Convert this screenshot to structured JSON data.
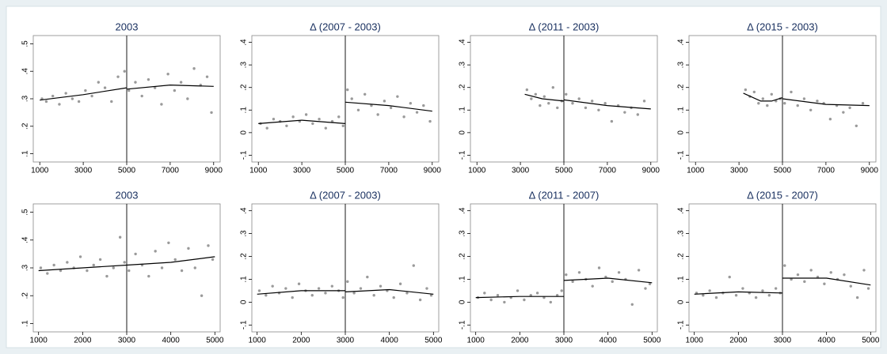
{
  "chart_data": [
    {
      "type": "scatter",
      "title": "2003",
      "color": "#9a9a9a",
      "fit_color": "#000000",
      "cutoff": 5000,
      "xlim": [
        700,
        9300
      ],
      "xticks": [
        1000,
        3000,
        5000,
        7000,
        9000
      ],
      "ylim": [
        0.07,
        0.53
      ],
      "yticks": [
        {
          "value": 0.1,
          "label": ".1"
        },
        {
          "value": 0.2,
          "label": ".2"
        },
        {
          "value": 0.3,
          "label": ".3"
        },
        {
          "value": 0.4,
          "label": ".4"
        },
        {
          "value": 0.5,
          "label": ".5"
        }
      ],
      "x": [
        1100,
        1300,
        1600,
        1900,
        2200,
        2500,
        2800,
        3100,
        3400,
        3700,
        4000,
        4300,
        4600,
        4900,
        5100,
        5400,
        5700,
        6000,
        6300,
        6600,
        6900,
        7200,
        7500,
        7800,
        8100,
        8400,
        8700,
        8900
      ],
      "y": [
        0.3,
        0.29,
        0.31,
        0.28,
        0.32,
        0.3,
        0.29,
        0.33,
        0.31,
        0.36,
        0.34,
        0.29,
        0.38,
        0.4,
        0.33,
        0.36,
        0.31,
        0.37,
        0.34,
        0.28,
        0.39,
        0.33,
        0.36,
        0.3,
        0.41,
        0.35,
        0.38,
        0.25
      ],
      "fit_x": [
        1000,
        3000,
        5000,
        null,
        5000,
        7000,
        9000
      ],
      "fit_y": [
        0.295,
        0.315,
        0.34,
        null,
        0.335,
        0.35,
        0.345
      ]
    },
    {
      "type": "scatter",
      "title": "Δ (2007 - 2003)",
      "color": "#9a9a9a",
      "fit_color": "#000000",
      "cutoff": 5000,
      "xlim": [
        700,
        9300
      ],
      "xticks": [
        1000,
        3000,
        5000,
        7000,
        9000
      ],
      "ylim": [
        -0.13,
        0.43
      ],
      "yticks": [
        {
          "value": -0.1,
          "label": "-.1"
        },
        0,
        {
          "value": 0.1,
          "label": ".1"
        },
        {
          "value": 0.2,
          "label": ".2"
        },
        {
          "value": 0.3,
          "label": ".3"
        },
        {
          "value": 0.4,
          "label": ".4"
        }
      ],
      "x": [
        1100,
        1400,
        1700,
        2000,
        2300,
        2600,
        2900,
        3200,
        3500,
        3800,
        4100,
        4400,
        4700,
        4900,
        5100,
        5300,
        5600,
        5900,
        6200,
        6500,
        6800,
        7100,
        7400,
        7700,
        8000,
        8300,
        8600,
        8900
      ],
      "y": [
        0.04,
        0.02,
        0.06,
        0.05,
        0.03,
        0.07,
        0.05,
        0.08,
        0.04,
        0.06,
        0.02,
        0.05,
        0.07,
        0.03,
        0.19,
        0.15,
        0.1,
        0.17,
        0.12,
        0.08,
        0.14,
        0.11,
        0.16,
        0.07,
        0.13,
        0.09,
        0.12,
        0.05
      ],
      "fit_x": [
        1000,
        3000,
        5000,
        null,
        5000,
        7000,
        9000
      ],
      "fit_y": [
        0.04,
        0.055,
        0.04,
        null,
        0.135,
        0.12,
        0.095
      ]
    },
    {
      "type": "scatter",
      "title": "Δ (2011 - 2003)",
      "color": "#9a9a9a",
      "fit_color": "#000000",
      "cutoff": 5000,
      "xlim": [
        700,
        9300
      ],
      "xticks": [
        1000,
        3000,
        5000,
        7000,
        9000
      ],
      "ylim": [
        -0.13,
        0.43
      ],
      "yticks": [
        {
          "value": -0.1,
          "label": "-.1"
        },
        0,
        {
          "value": 0.1,
          "label": ".1"
        },
        {
          "value": 0.2,
          "label": ".2"
        },
        {
          "value": 0.3,
          "label": ".3"
        },
        {
          "value": 0.4,
          "label": ".4"
        }
      ],
      "x": [
        3300,
        3500,
        3700,
        3900,
        4100,
        4300,
        4500,
        4700,
        4900,
        5100,
        5400,
        5700,
        6000,
        6300,
        6600,
        6900,
        7200,
        7500,
        7800,
        8100,
        8400,
        8700
      ],
      "y": [
        0.19,
        0.15,
        0.17,
        0.12,
        0.16,
        0.13,
        0.2,
        0.11,
        0.14,
        0.17,
        0.13,
        0.15,
        0.11,
        0.14,
        0.1,
        0.13,
        0.05,
        0.12,
        0.09,
        0.11,
        0.08,
        0.14
      ],
      "fit_x": [
        3200,
        4000,
        5000,
        null,
        5000,
        7000,
        9000
      ],
      "fit_y": [
        0.17,
        0.15,
        0.14,
        null,
        0.145,
        0.12,
        0.105
      ]
    },
    {
      "type": "scatter",
      "title": "Δ (2015 - 2003)",
      "color": "#9a9a9a",
      "fit_color": "#000000",
      "cutoff": 5000,
      "xlim": [
        700,
        9300
      ],
      "xticks": [
        1000,
        3000,
        5000,
        7000,
        9000
      ],
      "ylim": [
        -0.13,
        0.43
      ],
      "yticks": [
        {
          "value": -0.1,
          "label": "-.1"
        },
        0,
        {
          "value": 0.1,
          "label": ".1"
        },
        {
          "value": 0.2,
          "label": ".2"
        },
        {
          "value": 0.3,
          "label": ".3"
        },
        {
          "value": 0.4,
          "label": ".4"
        }
      ],
      "x": [
        3300,
        3500,
        3700,
        3900,
        4100,
        4300,
        4500,
        4700,
        4900,
        5100,
        5400,
        5700,
        6000,
        6300,
        6600,
        6900,
        7200,
        7500,
        7800,
        8100,
        8400,
        8700
      ],
      "y": [
        0.19,
        0.16,
        0.18,
        0.13,
        0.15,
        0.12,
        0.17,
        0.14,
        0.15,
        0.13,
        0.18,
        0.12,
        0.15,
        0.1,
        0.14,
        0.13,
        0.06,
        0.12,
        0.09,
        0.11,
        0.03,
        0.13
      ],
      "fit_x": [
        3200,
        4000,
        4500,
        5000,
        null,
        5000,
        7000,
        9000
      ],
      "fit_y": [
        0.175,
        0.14,
        0.14,
        0.155,
        null,
        0.15,
        0.125,
        0.12
      ]
    },
    {
      "type": "scatter",
      "title": "2003",
      "color": "#9a9a9a",
      "fit_color": "#000000",
      "cutoff": 3000,
      "xlim": [
        880,
        5120
      ],
      "xticks": [
        1000,
        2000,
        3000,
        4000,
        5000
      ],
      "ylim": [
        0.07,
        0.53
      ],
      "yticks": [
        {
          "value": 0.1,
          "label": ".1"
        },
        {
          "value": 0.2,
          "label": ".2"
        },
        {
          "value": 0.3,
          "label": ".3"
        },
        {
          "value": 0.4,
          "label": ".4"
        },
        {
          "value": 0.5,
          "label": ".5"
        }
      ],
      "x": [
        1050,
        1200,
        1350,
        1500,
        1650,
        1800,
        1950,
        2100,
        2250,
        2400,
        2550,
        2700,
        2850,
        2950,
        3050,
        3200,
        3350,
        3500,
        3650,
        3800,
        3950,
        4100,
        4250,
        4400,
        4550,
        4700,
        4850,
        4950
      ],
      "y": [
        0.3,
        0.28,
        0.31,
        0.29,
        0.32,
        0.3,
        0.34,
        0.29,
        0.31,
        0.33,
        0.27,
        0.3,
        0.41,
        0.32,
        0.29,
        0.35,
        0.31,
        0.27,
        0.36,
        0.3,
        0.39,
        0.33,
        0.29,
        0.37,
        0.3,
        0.2,
        0.38,
        0.33
      ],
      "fit_x": [
        1000,
        2000,
        3000,
        null,
        3000,
        4000,
        5000
      ],
      "fit_y": [
        0.29,
        0.3,
        0.31,
        null,
        0.31,
        0.32,
        0.34
      ]
    },
    {
      "type": "scatter",
      "title": "Δ (2007 - 2003)",
      "color": "#9a9a9a",
      "fit_color": "#000000",
      "cutoff": 3000,
      "xlim": [
        880,
        5120
      ],
      "xticks": [
        1000,
        2000,
        3000,
        4000,
        5000
      ],
      "ylim": [
        -0.13,
        0.43
      ],
      "yticks": [
        {
          "value": -0.1,
          "label": "-.1"
        },
        0,
        {
          "value": 0.1,
          "label": ".1"
        },
        {
          "value": 0.2,
          "label": ".2"
        },
        {
          "value": 0.3,
          "label": ".3"
        },
        {
          "value": 0.4,
          "label": ".4"
        }
      ],
      "x": [
        1050,
        1200,
        1350,
        1500,
        1650,
        1800,
        1950,
        2100,
        2250,
        2400,
        2550,
        2700,
        2850,
        2950,
        3050,
        3200,
        3350,
        3500,
        3650,
        3800,
        3950,
        4100,
        4250,
        4400,
        4550,
        4700,
        4850,
        4950
      ],
      "y": [
        0.05,
        0.03,
        0.07,
        0.04,
        0.06,
        0.02,
        0.08,
        0.05,
        0.03,
        0.06,
        0.04,
        0.07,
        0.05,
        0.02,
        0.09,
        0.04,
        0.06,
        0.11,
        0.03,
        0.07,
        0.05,
        0.02,
        0.08,
        0.04,
        0.16,
        0.01,
        0.06,
        0.03
      ],
      "fit_x": [
        1000,
        2000,
        3000,
        null,
        3000,
        4000,
        5000
      ],
      "fit_y": [
        0.035,
        0.05,
        0.05,
        null,
        0.045,
        0.055,
        0.035
      ]
    },
    {
      "type": "scatter",
      "title": "Δ (2011 - 2007)",
      "color": "#9a9a9a",
      "fit_color": "#000000",
      "cutoff": 3000,
      "xlim": [
        880,
        5120
      ],
      "xticks": [
        1000,
        2000,
        3000,
        4000,
        5000
      ],
      "ylim": [
        -0.13,
        0.43
      ],
      "yticks": [
        {
          "value": -0.1,
          "label": "-.1"
        },
        0,
        {
          "value": 0.1,
          "label": ".1"
        },
        {
          "value": 0.2,
          "label": ".2"
        },
        {
          "value": 0.3,
          "label": ".3"
        },
        {
          "value": 0.4,
          "label": ".4"
        }
      ],
      "x": [
        1050,
        1200,
        1350,
        1500,
        1650,
        1800,
        1950,
        2100,
        2250,
        2400,
        2550,
        2700,
        2850,
        2950,
        3050,
        3200,
        3350,
        3500,
        3650,
        3800,
        3950,
        4100,
        4250,
        4400,
        4550,
        4700,
        4850,
        4950
      ],
      "y": [
        0.02,
        0.04,
        0.01,
        0.03,
        0.0,
        0.02,
        0.05,
        0.01,
        0.03,
        0.04,
        0.02,
        0.0,
        0.03,
        0.05,
        0.12,
        0.09,
        0.13,
        0.1,
        0.07,
        0.15,
        0.11,
        0.09,
        0.13,
        0.1,
        -0.01,
        0.14,
        0.06,
        0.08
      ],
      "fit_x": [
        1000,
        2000,
        3000,
        null,
        3000,
        4000,
        5000
      ],
      "fit_y": [
        0.02,
        0.025,
        0.025,
        null,
        0.095,
        0.105,
        0.085
      ]
    },
    {
      "type": "scatter",
      "title": "Δ (2015 - 2007)",
      "color": "#9a9a9a",
      "fit_color": "#000000",
      "cutoff": 3000,
      "xlim": [
        880,
        5120
      ],
      "xticks": [
        1000,
        2000,
        3000,
        4000,
        5000
      ],
      "ylim": [
        -0.13,
        0.43
      ],
      "yticks": [
        {
          "value": -0.1,
          "label": "-.1"
        },
        0,
        {
          "value": 0.1,
          "label": ".1"
        },
        {
          "value": 0.2,
          "label": ".2"
        },
        {
          "value": 0.3,
          "label": ".3"
        },
        {
          "value": 0.4,
          "label": ".4"
        }
      ],
      "x": [
        1050,
        1200,
        1350,
        1500,
        1650,
        1800,
        1950,
        2100,
        2250,
        2400,
        2550,
        2700,
        2850,
        2950,
        3050,
        3200,
        3350,
        3500,
        3650,
        3800,
        3950,
        4100,
        4250,
        4400,
        4550,
        4700,
        4850,
        4950
      ],
      "y": [
        0.04,
        0.03,
        0.05,
        0.02,
        0.04,
        0.11,
        0.03,
        0.06,
        0.04,
        0.02,
        0.05,
        0.03,
        0.06,
        0.04,
        0.16,
        0.1,
        0.12,
        0.09,
        0.14,
        0.11,
        0.08,
        0.13,
        0.1,
        0.12,
        0.07,
        0.02,
        0.14,
        0.06
      ],
      "fit_x": [
        1000,
        2000,
        3000,
        null,
        3000,
        4000,
        5000
      ],
      "fit_y": [
        0.035,
        0.045,
        0.04,
        null,
        0.105,
        0.105,
        0.075
      ]
    }
  ]
}
